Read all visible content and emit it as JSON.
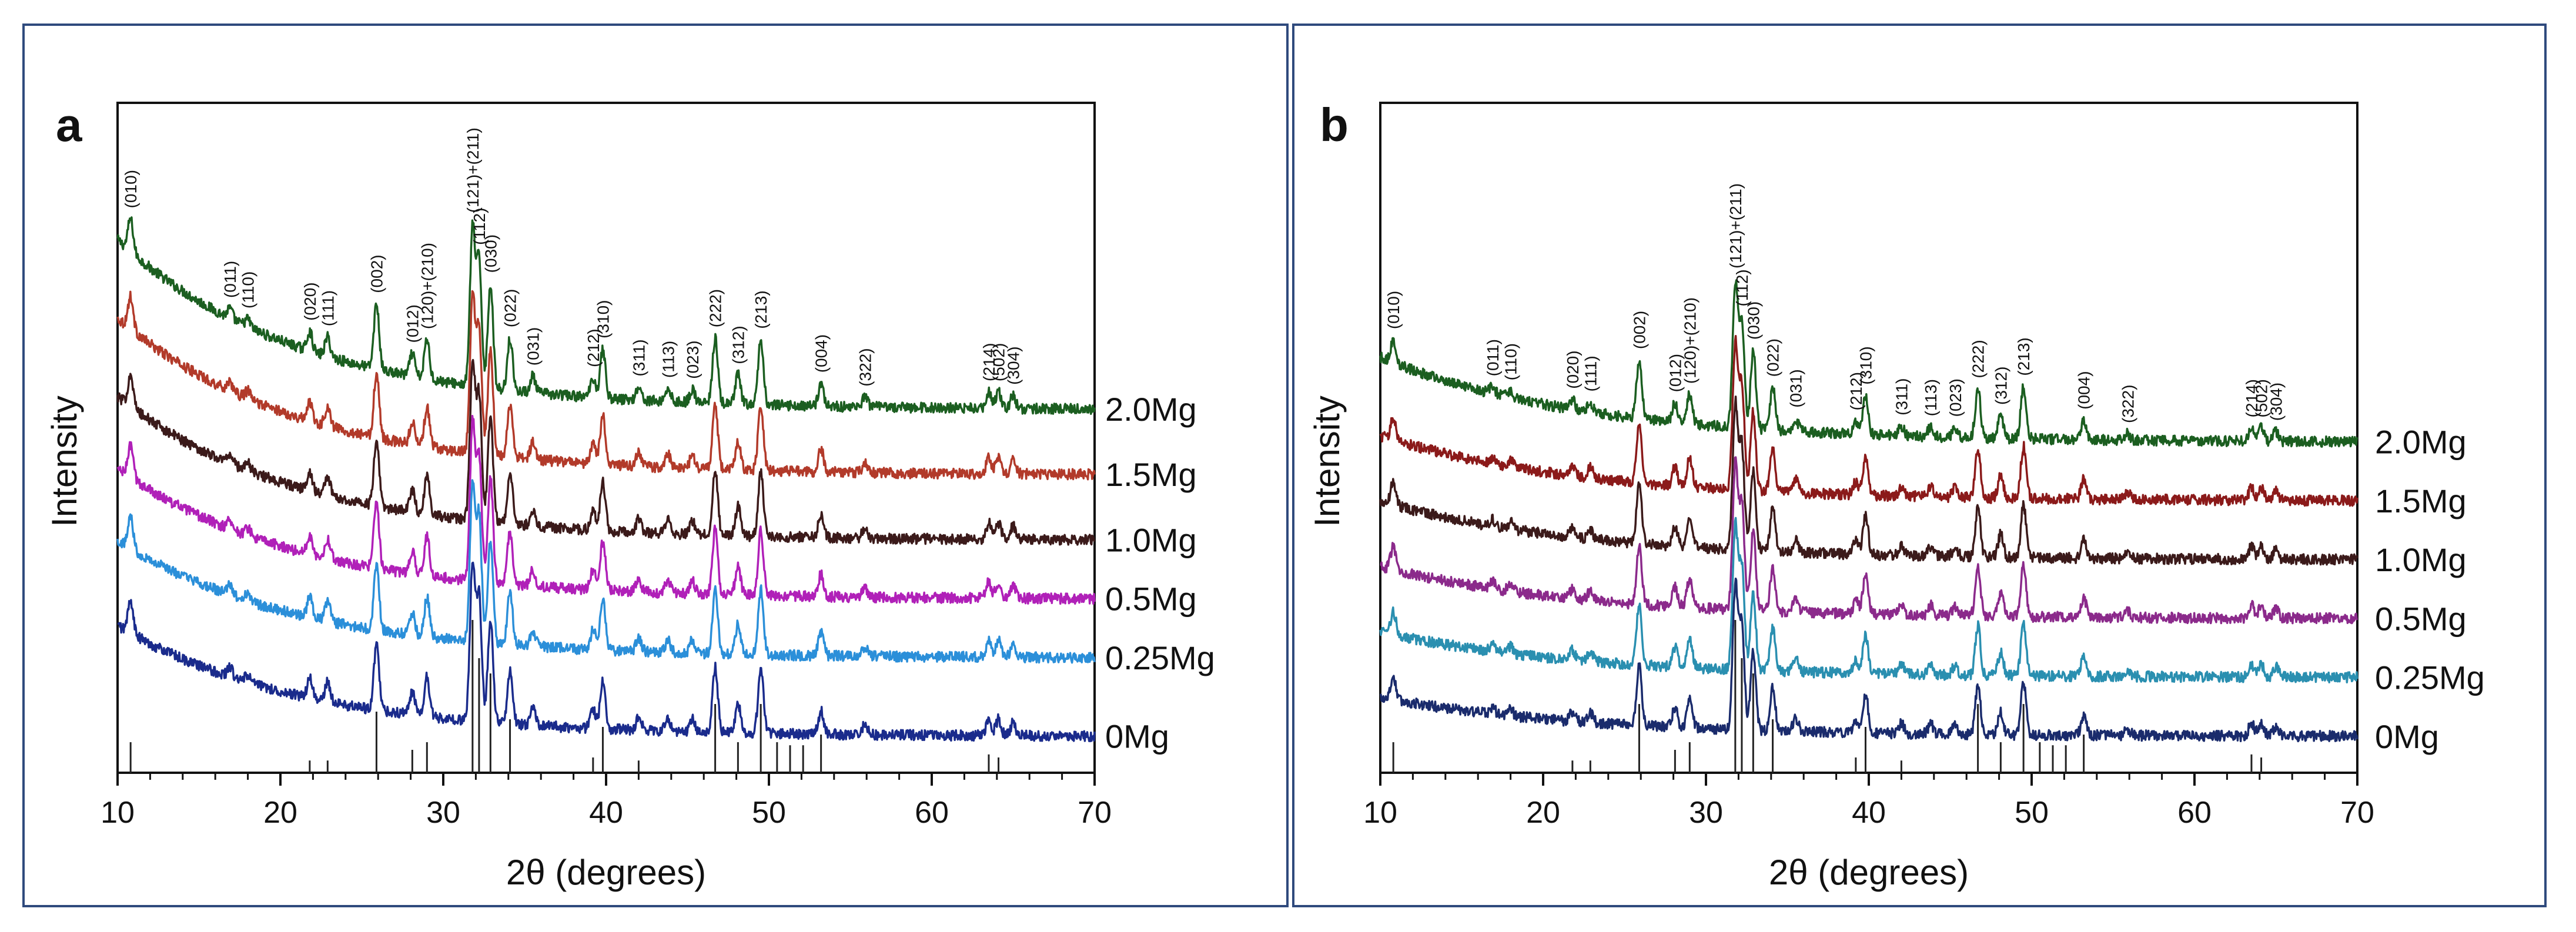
{
  "figure": {
    "frame_color": "#2f4a7d",
    "axis_color": "#111111",
    "reference_color": "#222222"
  },
  "chart_data": [
    {
      "type": "line",
      "panel": "a",
      "xlabel": "2θ (degrees)",
      "ylabel": "Intensity",
      "xlim": [
        10,
        70
      ],
      "xticks": [
        "10",
        "20",
        "30",
        "40",
        "50",
        "60",
        "70"
      ],
      "grid": false,
      "series": [
        {
          "name": "2.0Mg",
          "color": "#1b5e20",
          "offset": 5.0,
          "background": 2.6,
          "decay": 0.09
        },
        {
          "name": "1.5Mg",
          "color": "#b23a2a",
          "offset": 4.0,
          "background": 2.4,
          "decay": 0.09
        },
        {
          "name": "1.0Mg",
          "color": "#3b1a1a",
          "offset": 3.0,
          "background": 2.2,
          "decay": 0.09
        },
        {
          "name": "0.5Mg",
          "color": "#b020b8",
          "offset": 2.1,
          "background": 2.0,
          "decay": 0.09
        },
        {
          "name": "0.25Mg",
          "color": "#2b8fd9",
          "offset": 1.2,
          "background": 1.8,
          "decay": 0.09
        },
        {
          "name": "0Mg",
          "color": "#1a2b8c",
          "offset": 0.0,
          "background": 1.7,
          "decay": 0.09
        }
      ],
      "peaks": [
        {
          "hkl": "(010)",
          "pos": 10.8,
          "height": 0.5
        },
        {
          "hkl": "(011)",
          "pos": 16.9,
          "height": 0.15
        },
        {
          "hkl": "(110)",
          "pos": 18.0,
          "height": 0.12
        },
        {
          "hkl": "(020)",
          "pos": 21.8,
          "height": 0.3
        },
        {
          "hkl": "(111)",
          "pos": 22.9,
          "height": 0.3
        },
        {
          "hkl": "(002)",
          "pos": 25.9,
          "height": 1.0
        },
        {
          "hkl": "(012)",
          "pos": 28.1,
          "height": 0.35
        },
        {
          "hkl": "(120)+(210)",
          "pos": 29.0,
          "height": 0.6
        },
        {
          "hkl": "(121)+(211)",
          "pos": 31.8,
          "height": 2.4
        },
        {
          "hkl": "(112)",
          "pos": 32.2,
          "height": 1.9
        },
        {
          "hkl": "(030)",
          "pos": 32.9,
          "height": 1.6
        },
        {
          "hkl": "(022)",
          "pos": 34.1,
          "height": 0.8
        },
        {
          "hkl": "(031)",
          "pos": 35.5,
          "height": 0.25
        },
        {
          "hkl": "(212)",
          "pos": 39.2,
          "height": 0.3
        },
        {
          "hkl": "(310)",
          "pos": 39.8,
          "height": 0.75
        },
        {
          "hkl": "(311)",
          "pos": 42.0,
          "height": 0.2
        },
        {
          "hkl": "(113)",
          "pos": 43.8,
          "height": 0.2
        },
        {
          "hkl": "(023)",
          "pos": 45.3,
          "height": 0.2
        },
        {
          "hkl": "(222)",
          "pos": 46.7,
          "height": 1.0
        },
        {
          "hkl": "(312)",
          "pos": 48.1,
          "height": 0.45
        },
        {
          "hkl": "(213)",
          "pos": 49.5,
          "height": 1.0
        },
        {
          "hkl": "(004)",
          "pos": 53.2,
          "height": 0.35
        },
        {
          "hkl": "(322)",
          "pos": 55.9,
          "height": 0.15
        },
        {
          "hkl": "(214)",
          "pos": 63.5,
          "height": 0.25
        },
        {
          "hkl": "(502)",
          "pos": 64.1,
          "height": 0.25
        },
        {
          "hkl": "(304)",
          "pos": 65.0,
          "height": 0.2
        }
      ],
      "reference_lines": [
        {
          "pos": 10.8,
          "h": 0.2
        },
        {
          "pos": 21.8,
          "h": 0.08
        },
        {
          "pos": 22.9,
          "h": 0.08
        },
        {
          "pos": 25.9,
          "h": 0.4
        },
        {
          "pos": 28.1,
          "h": 0.15
        },
        {
          "pos": 29.0,
          "h": 0.2
        },
        {
          "pos": 31.8,
          "h": 1.0
        },
        {
          "pos": 32.2,
          "h": 0.75
        },
        {
          "pos": 32.9,
          "h": 0.65
        },
        {
          "pos": 34.1,
          "h": 0.35
        },
        {
          "pos": 39.2,
          "h": 0.1
        },
        {
          "pos": 39.8,
          "h": 0.3
        },
        {
          "pos": 42.0,
          "h": 0.08
        },
        {
          "pos": 46.7,
          "h": 0.45
        },
        {
          "pos": 48.1,
          "h": 0.2
        },
        {
          "pos": 49.5,
          "h": 0.45
        },
        {
          "pos": 50.5,
          "h": 0.2
        },
        {
          "pos": 51.3,
          "h": 0.18
        },
        {
          "pos": 52.1,
          "h": 0.18
        },
        {
          "pos": 53.2,
          "h": 0.25
        },
        {
          "pos": 63.5,
          "h": 0.12
        },
        {
          "pos": 64.1,
          "h": 0.1
        }
      ]
    },
    {
      "type": "line",
      "panel": "b",
      "xlabel": "2θ (degrees)",
      "ylabel": "Intensity",
      "xlim": [
        10,
        70
      ],
      "xticks": [
        "10",
        "20",
        "30",
        "40",
        "50",
        "60",
        "70"
      ],
      "grid": false,
      "series": [
        {
          "name": "2.0Mg",
          "color": "#1b5e20",
          "offset": 4.5,
          "background": 1.3,
          "decay": 0.08
        },
        {
          "name": "1.5Mg",
          "color": "#8b1a1a",
          "offset": 3.6,
          "background": 1.0,
          "decay": 0.08
        },
        {
          "name": "1.0Mg",
          "color": "#3b1a1a",
          "offset": 2.7,
          "background": 0.9,
          "decay": 0.08
        },
        {
          "name": "0.5Mg",
          "color": "#8b2a8b",
          "offset": 1.8,
          "background": 0.8,
          "decay": 0.08
        },
        {
          "name": "0.25Mg",
          "color": "#2a8fb0",
          "offset": 0.9,
          "background": 0.7,
          "decay": 0.08
        },
        {
          "name": "0Mg",
          "color": "#1a2b6c",
          "offset": 0.0,
          "background": 0.6,
          "decay": 0.08
        }
      ],
      "peaks": [
        {
          "hkl": "(010)",
          "pos": 10.8,
          "height": 0.35
        },
        {
          "hkl": "(011)",
          "pos": 16.9,
          "height": 0.1
        },
        {
          "hkl": "(110)",
          "pos": 18.0,
          "height": 0.1
        },
        {
          "hkl": "(020)",
          "pos": 21.8,
          "height": 0.15
        },
        {
          "hkl": "(111)",
          "pos": 22.9,
          "height": 0.15
        },
        {
          "hkl": "(002)",
          "pos": 25.9,
          "height": 0.9
        },
        {
          "hkl": "(012)",
          "pos": 28.1,
          "height": 0.3
        },
        {
          "hkl": "(120)+(210)",
          "pos": 29.0,
          "height": 0.45
        },
        {
          "hkl": "(121)+(211)",
          "pos": 31.8,
          "height": 2.2
        },
        {
          "hkl": "(112)",
          "pos": 32.2,
          "height": 1.6
        },
        {
          "hkl": "(030)",
          "pos": 32.9,
          "height": 1.2
        },
        {
          "hkl": "(022)",
          "pos": 34.1,
          "height": 0.65
        },
        {
          "hkl": "(031)",
          "pos": 35.5,
          "height": 0.2
        },
        {
          "hkl": "(212)",
          "pos": 39.2,
          "height": 0.2
        },
        {
          "hkl": "(310)",
          "pos": 39.8,
          "height": 0.6
        },
        {
          "hkl": "(311)",
          "pos": 42.0,
          "height": 0.15
        },
        {
          "hkl": "(113)",
          "pos": 43.8,
          "height": 0.15
        },
        {
          "hkl": "(023)",
          "pos": 45.3,
          "height": 0.15
        },
        {
          "hkl": "(222)",
          "pos": 46.7,
          "height": 0.75
        },
        {
          "hkl": "(312)",
          "pos": 48.1,
          "height": 0.35
        },
        {
          "hkl": "(213)",
          "pos": 49.5,
          "height": 0.8
        },
        {
          "hkl": "(004)",
          "pos": 53.2,
          "height": 0.3
        },
        {
          "hkl": "(322)",
          "pos": 55.9,
          "height": 0.1
        },
        {
          "hkl": "(214)",
          "pos": 63.5,
          "height": 0.2
        },
        {
          "hkl": "(502)",
          "pos": 64.1,
          "height": 0.2
        },
        {
          "hkl": "(304)",
          "pos": 65.0,
          "height": 0.15
        }
      ],
      "reference_lines": [
        {
          "pos": 10.8,
          "h": 0.2
        },
        {
          "pos": 21.8,
          "h": 0.08
        },
        {
          "pos": 22.9,
          "h": 0.08
        },
        {
          "pos": 25.9,
          "h": 0.45
        },
        {
          "pos": 28.1,
          "h": 0.15
        },
        {
          "pos": 29.0,
          "h": 0.2
        },
        {
          "pos": 31.8,
          "h": 1.0
        },
        {
          "pos": 32.2,
          "h": 0.75
        },
        {
          "pos": 32.9,
          "h": 0.65
        },
        {
          "pos": 34.1,
          "h": 0.35
        },
        {
          "pos": 39.2,
          "h": 0.1
        },
        {
          "pos": 39.8,
          "h": 0.3
        },
        {
          "pos": 42.0,
          "h": 0.08
        },
        {
          "pos": 46.7,
          "h": 0.45
        },
        {
          "pos": 48.1,
          "h": 0.2
        },
        {
          "pos": 49.5,
          "h": 0.45
        },
        {
          "pos": 50.5,
          "h": 0.2
        },
        {
          "pos": 51.3,
          "h": 0.18
        },
        {
          "pos": 52.1,
          "h": 0.18
        },
        {
          "pos": 53.2,
          "h": 0.25
        },
        {
          "pos": 63.5,
          "h": 0.12
        },
        {
          "pos": 64.1,
          "h": 0.1
        }
      ]
    }
  ]
}
